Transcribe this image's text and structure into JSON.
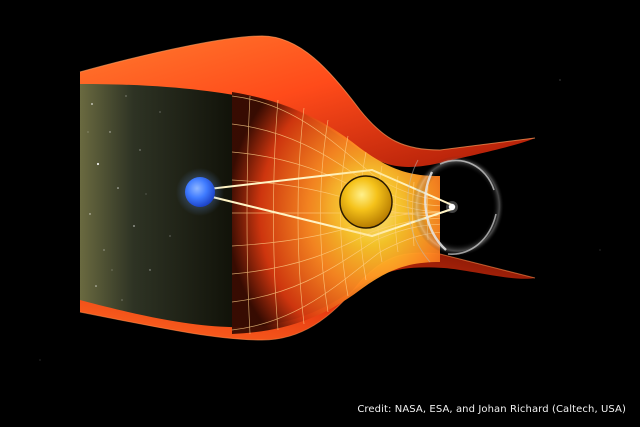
{
  "illustration": {
    "subject": "gravitational-lensing",
    "colors": {
      "background": "#000000",
      "funnel_edge": "#ff5a1e",
      "funnel_inner": "#ff9a3a",
      "grid_line": "#ffd28a",
      "source_star": "#3f7bff",
      "lens_object": "#f5c21a",
      "light_ray": "#fff3c4",
      "einstein_ring": "#e8e8e8"
    }
  },
  "credit": {
    "text": "Credit: NASA, ESA, and Johan Richard (Caltech, USA)"
  }
}
